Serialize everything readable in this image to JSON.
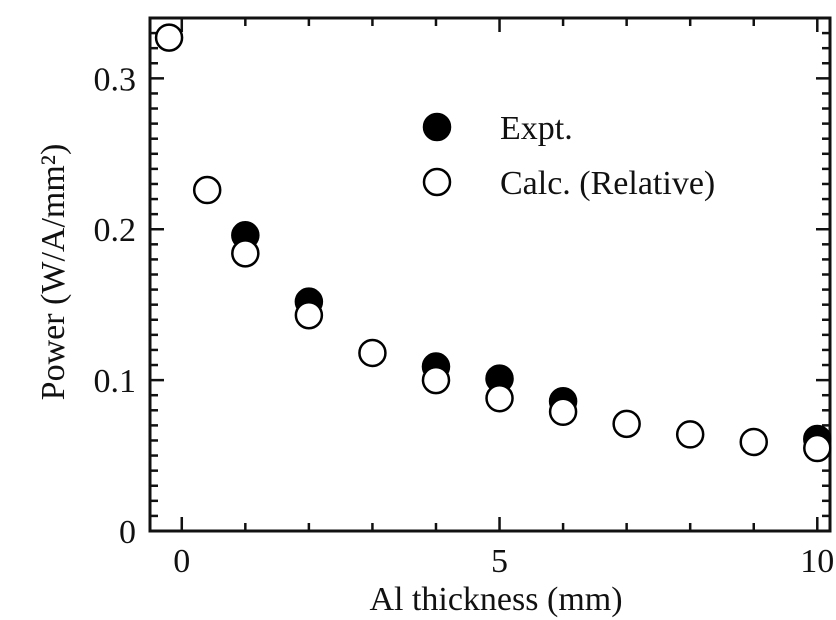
{
  "chart_data": {
    "type": "scatter",
    "title": "",
    "xlabel": "Al thickness (mm)",
    "ylabel": "Power (W/A/mm²)",
    "xlim": [
      -0.5,
      10.2
    ],
    "ylim": [
      0,
      0.34
    ],
    "x_ticks": [
      0,
      5,
      10
    ],
    "y_ticks": [
      0,
      0.1,
      0.2,
      0.3
    ],
    "x_tick_labels": [
      "0",
      "5",
      "10"
    ],
    "y_tick_labels": [
      "0",
      "0.1",
      "0.2",
      "0.3"
    ],
    "legend_position": "upper-right",
    "grid": false,
    "series": [
      {
        "name": "Expt.",
        "marker": "filled-circle",
        "color": "#000000",
        "x": [
          1,
          2,
          4,
          5,
          6,
          10
        ],
        "y": [
          0.196,
          0.152,
          0.109,
          0.101,
          0.086,
          0.061
        ]
      },
      {
        "name": "Calc. (Relative)",
        "marker": "open-circle",
        "color": "#000000",
        "x": [
          -0.2,
          0.4,
          1,
          2,
          3,
          4,
          5,
          6,
          7,
          8,
          9,
          10
        ],
        "y": [
          0.327,
          0.226,
          0.184,
          0.143,
          0.118,
          0.1,
          0.088,
          0.079,
          0.071,
          0.064,
          0.059,
          0.055
        ]
      }
    ]
  }
}
